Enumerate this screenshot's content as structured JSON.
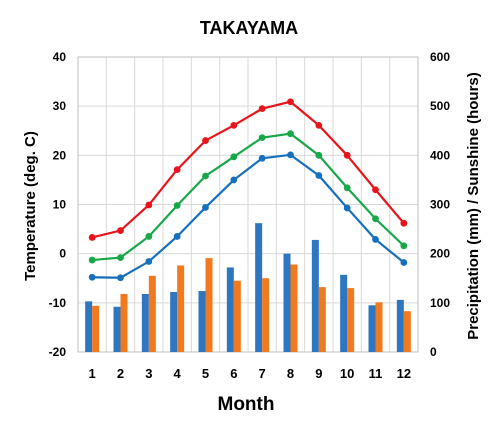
{
  "chart_data": {
    "type": "bar",
    "title": "TAKAYAMA",
    "xlabel": "Month",
    "ylabel_left": "Temperature (deg. C)",
    "ylabel_right": "Precipitation (mm) / Sunshine (hours)",
    "categories": [
      "1",
      "2",
      "3",
      "4",
      "5",
      "6",
      "7",
      "8",
      "9",
      "10",
      "11",
      "12"
    ],
    "ylim_left": [
      -20,
      40
    ],
    "yticks_left": [
      -20,
      -10,
      0,
      10,
      20,
      30,
      40
    ],
    "ylim_right": [
      0,
      600
    ],
    "yticks_right": [
      0,
      100,
      200,
      300,
      400,
      500,
      600
    ],
    "grid": true,
    "legend": "none",
    "line_series": [
      {
        "axis": "left",
        "color": "#e8141c",
        "values": [
          3.3,
          4.7,
          9.9,
          17.1,
          23.0,
          26.1,
          29.5,
          30.9,
          26.1,
          20.0,
          13.0,
          6.2
        ]
      },
      {
        "axis": "left",
        "color": "#18a84a",
        "values": [
          -1.3,
          -0.8,
          3.5,
          9.8,
          15.8,
          19.7,
          23.6,
          24.4,
          20.0,
          13.4,
          7.1,
          1.6
        ]
      },
      {
        "axis": "left",
        "color": "#1670be",
        "values": [
          -4.8,
          -4.9,
          -1.6,
          3.5,
          9.4,
          15.0,
          19.4,
          20.1,
          15.9,
          9.3,
          2.9,
          -1.8
        ]
      }
    ],
    "bar_series": [
      {
        "axis": "right",
        "color": "#2f76c0",
        "values": [
          103,
          92,
          118,
          122,
          124,
          172,
          262,
          200,
          228,
          157,
          95,
          106
        ]
      },
      {
        "axis": "right",
        "color": "#f27a1e",
        "values": [
          94,
          118,
          155,
          176,
          191,
          145,
          150,
          178,
          132,
          130,
          101,
          83
        ]
      }
    ]
  }
}
